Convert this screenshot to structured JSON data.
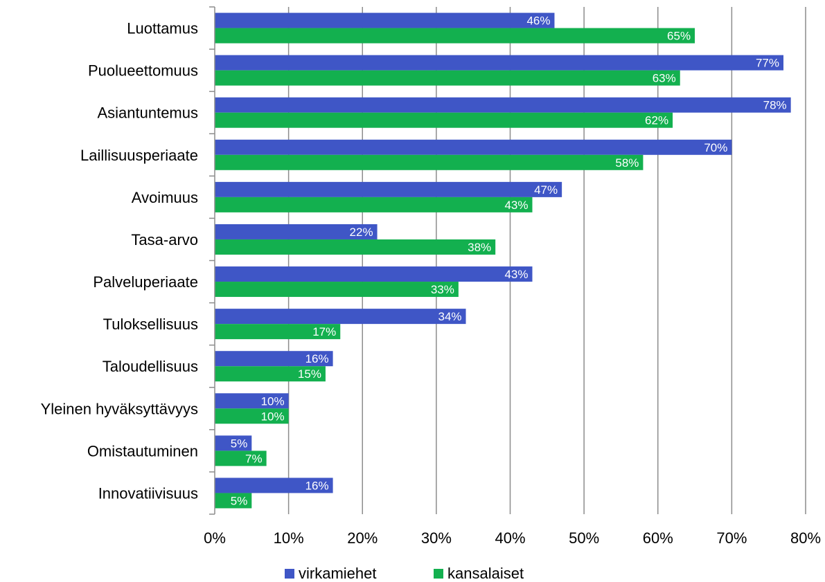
{
  "chart_data": {
    "type": "bar",
    "orientation": "horizontal",
    "categories": [
      "Luottamus",
      "Puolueettomuus",
      "Asiantuntemus",
      "Laillisuusperiaate",
      "Avoimuus",
      "Tasa-arvo",
      "Palveluperiaate",
      "Tuloksellisuus",
      "Taloudellisuus",
      "Yleinen hyväksyttävyys",
      "Omistautuminen",
      "Innovatiivisuus"
    ],
    "series": [
      {
        "name": "virkamiehet",
        "color": "#3f56c6",
        "values": [
          46,
          77,
          78,
          70,
          47,
          22,
          43,
          34,
          16,
          10,
          5,
          16
        ],
        "labels": [
          "46%",
          "77%",
          "78%",
          "70%",
          "47%",
          "22%",
          "43%",
          "34%",
          "16%",
          "10%",
          "5%",
          "16%"
        ]
      },
      {
        "name": "kansalaiset",
        "color": "#13b04f",
        "values": [
          65,
          63,
          62,
          58,
          43,
          38,
          33,
          17,
          15,
          10,
          7,
          5
        ],
        "labels": [
          "65%",
          "63%",
          "62%",
          "58%",
          "43%",
          "38%",
          "33%",
          "17%",
          "15%",
          "10%",
          "7%",
          "5%"
        ]
      }
    ],
    "xlim": [
      0,
      80
    ],
    "x_ticks": [
      "0%",
      "10%",
      "20%",
      "30%",
      "40%",
      "50%",
      "60%",
      "70%",
      "80%"
    ],
    "grid": "vertical",
    "legend_position": "bottom"
  }
}
